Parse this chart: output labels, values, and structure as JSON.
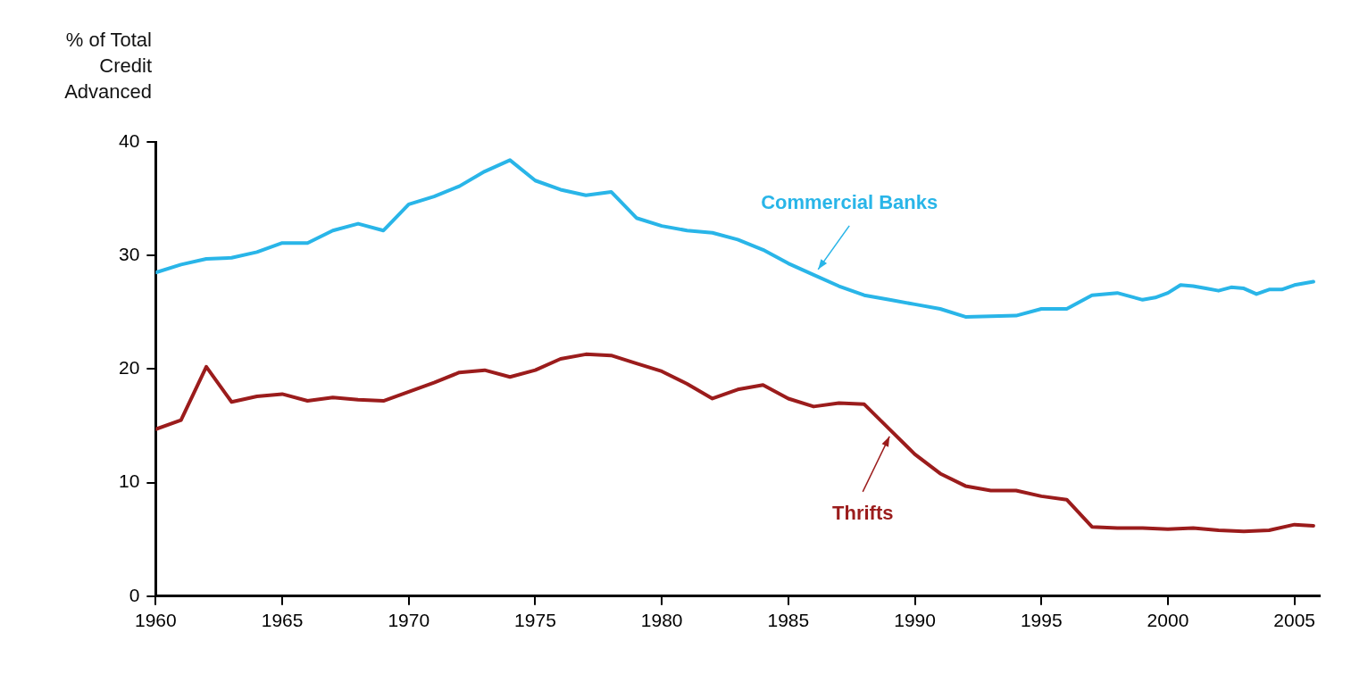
{
  "chart_data": {
    "type": "line",
    "ylabel": "% of Total Credit Advanced",
    "xlim": [
      1960,
      2006
    ],
    "xticks": [
      1960,
      1965,
      1970,
      1975,
      1980,
      1985,
      1990,
      1995,
      2000,
      2005
    ],
    "ylim": [
      0,
      40
    ],
    "yticks": [
      0,
      10,
      20,
      30,
      40
    ],
    "grid": false,
    "legend": false,
    "marker": "none",
    "line_style": "solid",
    "series": [
      {
        "name": "Commercial Banks",
        "color": "#29b5e8",
        "x": [
          1960,
          1961,
          1962,
          1963,
          1964,
          1965,
          1966,
          1967,
          1968,
          1969,
          1970,
          1971,
          1972,
          1973,
          1974,
          1975,
          1976,
          1977,
          1978,
          1979,
          1980,
          1981,
          1982,
          1983,
          1984,
          1985,
          1986,
          1987,
          1988,
          1989,
          1990,
          1991,
          1992,
          1994,
          1995,
          1996,
          1997,
          1998,
          1999,
          1999.5,
          2000,
          2000.5,
          2001,
          2001.5,
          2002,
          2002.5,
          2003,
          2003.5,
          2004,
          2004.5,
          2005,
          2005.75
        ],
        "values": [
          28.5,
          29.2,
          29.7,
          29.8,
          30.3,
          31.1,
          31.1,
          32.2,
          32.8,
          32.2,
          34.5,
          35.2,
          36.1,
          37.4,
          38.4,
          36.6,
          35.8,
          35.3,
          35.6,
          33.3,
          32.6,
          32.2,
          32.0,
          31.4,
          30.5,
          29.3,
          28.3,
          27.3,
          26.5,
          26.1,
          25.7,
          25.3,
          24.6,
          24.7,
          25.3,
          25.3,
          26.5,
          26.7,
          26.1,
          26.3,
          26.7,
          27.4,
          27.3,
          27.1,
          26.9,
          27.2,
          27.1,
          26.6,
          27.0,
          27.0,
          27.4,
          27.7
        ]
      },
      {
        "name": "Thrifts",
        "color": "#9b1c1c",
        "x": [
          1960,
          1961,
          1962,
          1963,
          1964,
          1965,
          1966,
          1967,
          1968,
          1969,
          1970,
          1971,
          1972,
          1973,
          1974,
          1975,
          1976,
          1977,
          1978,
          1979,
          1980,
          1981,
          1982,
          1983,
          1984,
          1985,
          1986,
          1987,
          1988,
          1989,
          1990,
          1991,
          1992,
          1993,
          1994,
          1995,
          1996,
          1997,
          1998,
          1999,
          2000,
          2001,
          2002,
          2003,
          2004,
          2005,
          2005.75
        ],
        "values": [
          14.7,
          15.5,
          20.2,
          17.1,
          17.6,
          17.8,
          17.2,
          17.5,
          17.3,
          17.2,
          18.0,
          18.8,
          19.7,
          19.9,
          19.3,
          19.9,
          20.9,
          21.3,
          21.2,
          20.5,
          19.8,
          18.7,
          17.4,
          18.2,
          18.6,
          17.4,
          16.7,
          17.0,
          16.9,
          14.7,
          12.5,
          10.8,
          9.7,
          9.3,
          9.3,
          8.8,
          8.5,
          6.1,
          6.0,
          6.0,
          5.9,
          6.0,
          5.8,
          5.7,
          5.8,
          6.3,
          6.2
        ]
      }
    ]
  }
}
